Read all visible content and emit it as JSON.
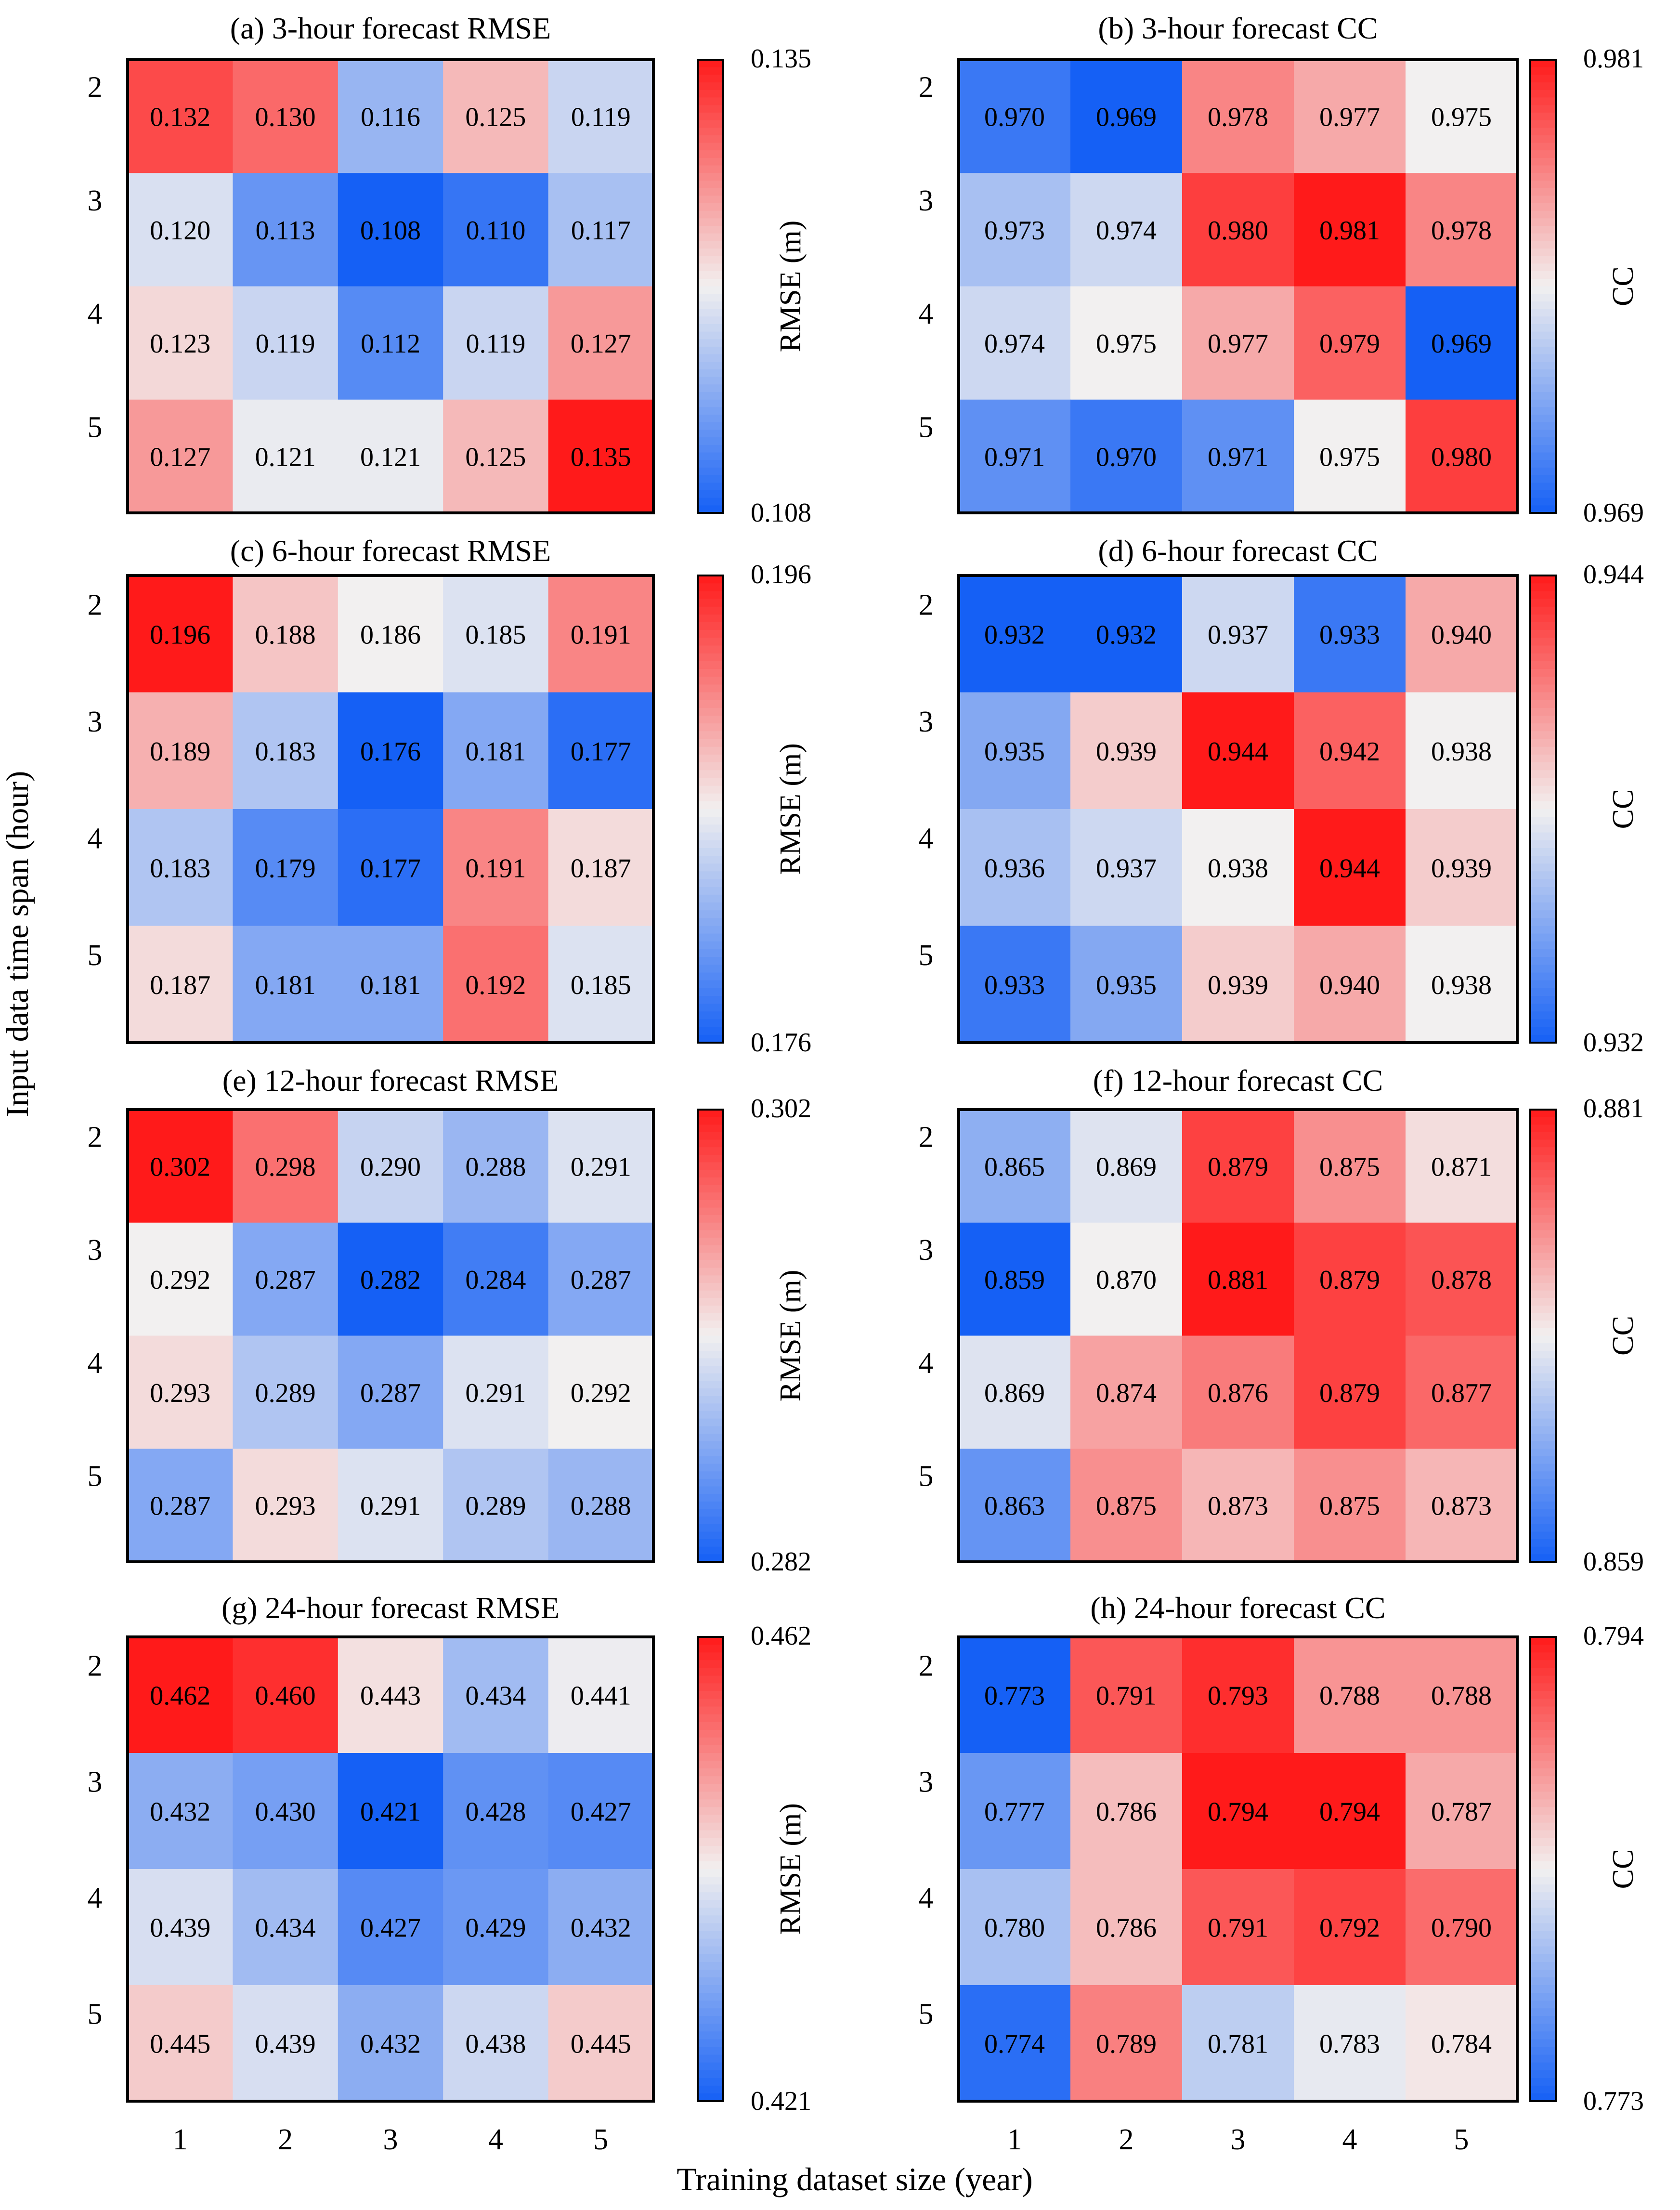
{
  "figure": {
    "xlabel": "Training dataset size (year)",
    "ylabel": "Input data time span (hour)"
  },
  "colors": {
    "low": "#1560f5",
    "mid": "#f2f0f0",
    "high": "#ff1a1a",
    "light_text": "#ffffff",
    "dark_text": "#000000"
  },
  "chart_data": [
    {
      "type": "heatmap",
      "title": "(a) 3-hour forecast  RMSE",
      "x": [
        "1",
        "2",
        "3",
        "4",
        "5"
      ],
      "y": [
        "2",
        "3",
        "4",
        "5"
      ],
      "values": [
        [
          "0.132",
          "0.130",
          "0.116",
          "0.125",
          "0.119"
        ],
        [
          "0.120",
          "0.113",
          "0.108",
          "0.110",
          "0.117"
        ],
        [
          "0.123",
          "0.119",
          "0.112",
          "0.119",
          "0.127"
        ],
        [
          "0.127",
          "0.121",
          "0.121",
          "0.125",
          "0.135"
        ]
      ],
      "colorbar": {
        "label": "RMSE (m)",
        "min": "0.108",
        "max": "0.135"
      }
    },
    {
      "type": "heatmap",
      "title": "(b) 3-hour forecast  CC",
      "x": [
        "1",
        "2",
        "3",
        "4",
        "5"
      ],
      "y": [
        "2",
        "3",
        "4",
        "5"
      ],
      "values": [
        [
          "0.970",
          "0.969",
          "0.978",
          "0.977",
          "0.975"
        ],
        [
          "0.973",
          "0.974",
          "0.980",
          "0.981",
          "0.978"
        ],
        [
          "0.974",
          "0.975",
          "0.977",
          "0.979",
          "0.969"
        ],
        [
          "0.971",
          "0.970",
          "0.971",
          "0.975",
          "0.980"
        ]
      ],
      "colorbar": {
        "label": "CC",
        "min": "0.969",
        "max": "0.981"
      }
    },
    {
      "type": "heatmap",
      "title": "(c) 6-hour forecast  RMSE",
      "x": [
        "1",
        "2",
        "3",
        "4",
        "5"
      ],
      "y": [
        "2",
        "3",
        "4",
        "5"
      ],
      "values": [
        [
          "0.196",
          "0.188",
          "0.186",
          "0.185",
          "0.191"
        ],
        [
          "0.189",
          "0.183",
          "0.176",
          "0.181",
          "0.177"
        ],
        [
          "0.183",
          "0.179",
          "0.177",
          "0.191",
          "0.187"
        ],
        [
          "0.187",
          "0.181",
          "0.181",
          "0.192",
          "0.185"
        ]
      ],
      "colorbar": {
        "label": "RMSE (m)",
        "min": "0.176",
        "max": "0.196"
      }
    },
    {
      "type": "heatmap",
      "title": "(d) 6-hour forecast  CC",
      "x": [
        "1",
        "2",
        "3",
        "4",
        "5"
      ],
      "y": [
        "2",
        "3",
        "4",
        "5"
      ],
      "values": [
        [
          "0.932",
          "0.932",
          "0.937",
          "0.933",
          "0.940"
        ],
        [
          "0.935",
          "0.939",
          "0.944",
          "0.942",
          "0.938"
        ],
        [
          "0.936",
          "0.937",
          "0.938",
          "0.944",
          "0.939"
        ],
        [
          "0.933",
          "0.935",
          "0.939",
          "0.940",
          "0.938"
        ]
      ],
      "colorbar": {
        "label": "CC",
        "min": "0.932",
        "max": "0.944"
      }
    },
    {
      "type": "heatmap",
      "title": "(e) 12-hour forecast  RMSE",
      "x": [
        "1",
        "2",
        "3",
        "4",
        "5"
      ],
      "y": [
        "2",
        "3",
        "4",
        "5"
      ],
      "values": [
        [
          "0.302",
          "0.298",
          "0.290",
          "0.288",
          "0.291"
        ],
        [
          "0.292",
          "0.287",
          "0.282",
          "0.284",
          "0.287"
        ],
        [
          "0.293",
          "0.289",
          "0.287",
          "0.291",
          "0.292"
        ],
        [
          "0.287",
          "0.293",
          "0.291",
          "0.289",
          "0.288"
        ]
      ],
      "colorbar": {
        "label": "RMSE (m)",
        "min": "0.282",
        "max": "0.302"
      }
    },
    {
      "type": "heatmap",
      "title": "(f) 12-hour forecast CC",
      "x": [
        "1",
        "2",
        "3",
        "4",
        "5"
      ],
      "y": [
        "2",
        "3",
        "4",
        "5"
      ],
      "values": [
        [
          "0.865",
          "0.869",
          "0.879",
          "0.875",
          "0.871"
        ],
        [
          "0.859",
          "0.870",
          "0.881",
          "0.879",
          "0.878"
        ],
        [
          "0.869",
          "0.874",
          "0.876",
          "0.879",
          "0.877"
        ],
        [
          "0.863",
          "0.875",
          "0.873",
          "0.875",
          "0.873"
        ]
      ],
      "colorbar": {
        "label": "CC",
        "min": "0.859",
        "max": "0.881"
      }
    },
    {
      "type": "heatmap",
      "title": "(g) 24-hour forecast  RMSE",
      "x": [
        "1",
        "2",
        "3",
        "4",
        "5"
      ],
      "y": [
        "2",
        "3",
        "4",
        "5"
      ],
      "values": [
        [
          "0.462",
          "0.460",
          "0.443",
          "0.434",
          "0.441"
        ],
        [
          "0.432",
          "0.430",
          "0.421",
          "0.428",
          "0.427"
        ],
        [
          "0.439",
          "0.434",
          "0.427",
          "0.429",
          "0.432"
        ],
        [
          "0.445",
          "0.439",
          "0.432",
          "0.438",
          "0.445"
        ]
      ],
      "colorbar": {
        "label": "RMSE (m)",
        "min": "0.421",
        "max": "0.462"
      }
    },
    {
      "type": "heatmap",
      "title": "(h) 24-hour forecast  CC",
      "x": [
        "1",
        "2",
        "3",
        "4",
        "5"
      ],
      "y": [
        "2",
        "3",
        "4",
        "5"
      ],
      "values": [
        [
          "0.773",
          "0.791",
          "0.793",
          "0.788",
          "0.788"
        ],
        [
          "0.777",
          "0.786",
          "0.794",
          "0.794",
          "0.787"
        ],
        [
          "0.780",
          "0.786",
          "0.791",
          "0.792",
          "0.790"
        ],
        [
          "0.774",
          "0.789",
          "0.781",
          "0.783",
          "0.784"
        ]
      ],
      "colorbar": {
        "label": "CC",
        "min": "0.773",
        "max": "0.794"
      }
    }
  ]
}
